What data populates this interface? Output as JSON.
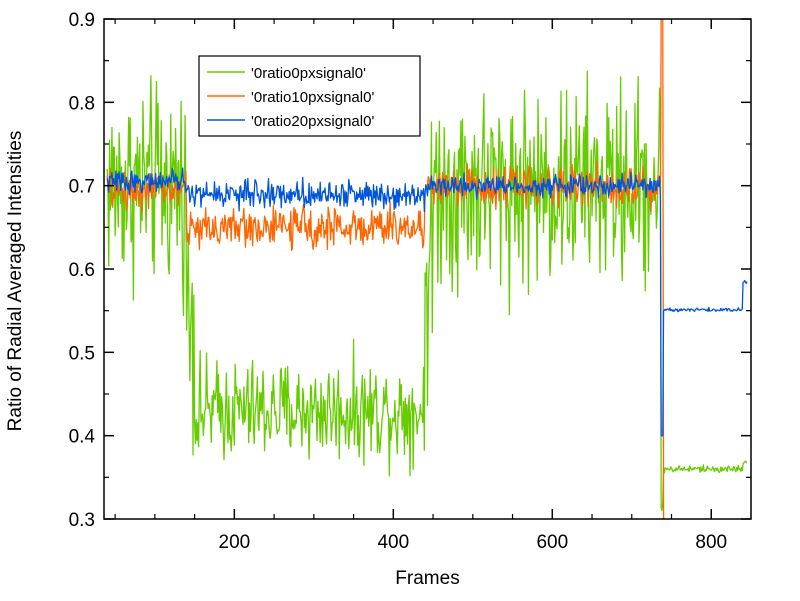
{
  "chart_data": {
    "type": "line",
    "title": "",
    "xlabel": "Frames",
    "ylabel": "Ratio of Radial Averaged Intensities",
    "xlim": [
      36,
      850
    ],
    "ylim": [
      0.3,
      0.9
    ],
    "xticks": [
      200,
      400,
      600,
      800
    ],
    "yticks": [
      0.3,
      0.4,
      0.5,
      0.6,
      0.7,
      0.8,
      0.9
    ],
    "xtick_labels": [
      "200",
      "400",
      "600",
      "800"
    ],
    "ytick_labels": [
      "0.3",
      "0.4",
      "0.5",
      "0.6",
      "0.7",
      "0.8",
      "0.9"
    ],
    "grid": false,
    "legend_position": "upper-left",
    "series": [
      {
        "name": "'0ratio0pxsignal0'",
        "color": "#66cc00",
        "segments": [
          {
            "x_start": 40,
            "x_end": 140,
            "mean": 0.7,
            "noise": 0.11
          },
          {
            "x_start": 140,
            "x_end": 150,
            "mean": 0.55,
            "noise": 0.12
          },
          {
            "x_start": 150,
            "x_end": 440,
            "mean": 0.43,
            "noise": 0.055
          },
          {
            "x_start": 440,
            "x_end": 450,
            "mean": 0.6,
            "noise": 0.15
          },
          {
            "x_start": 450,
            "x_end": 737,
            "mean": 0.7,
            "noise": 0.11
          },
          {
            "x_start": 737,
            "x_end": 740,
            "mean": 0.33,
            "noise": 0.03
          },
          {
            "x_start": 740,
            "x_end": 840,
            "mean": 0.36,
            "noise": 0.004
          },
          {
            "x_start": 840,
            "x_end": 845,
            "mean": 0.368,
            "noise": 0.002
          }
        ]
      },
      {
        "name": "'0ratio10pxsignal0'",
        "color": "#ff6600",
        "segments": [
          {
            "x_start": 40,
            "x_end": 140,
            "mean": 0.695,
            "noise": 0.022
          },
          {
            "x_start": 140,
            "x_end": 440,
            "mean": 0.65,
            "noise": 0.022
          },
          {
            "x_start": 440,
            "x_end": 737,
            "mean": 0.7,
            "noise": 0.022
          },
          {
            "x_start": 737,
            "x_end": 740,
            "mean": 0.9,
            "noise": 0.0
          },
          {
            "x_start": 740,
            "x_end": 742,
            "mean": 0.3,
            "noise": 0.0
          }
        ]
      },
      {
        "name": "'0ratio20pxsignal0'",
        "color": "#0055dd",
        "segments": [
          {
            "x_start": 40,
            "x_end": 140,
            "mean": 0.705,
            "noise": 0.012
          },
          {
            "x_start": 140,
            "x_end": 440,
            "mean": 0.69,
            "noise": 0.015
          },
          {
            "x_start": 440,
            "x_end": 737,
            "mean": 0.7,
            "noise": 0.012
          },
          {
            "x_start": 737,
            "x_end": 740,
            "mean": 0.4,
            "noise": 0.0
          },
          {
            "x_start": 740,
            "x_end": 840,
            "mean": 0.551,
            "noise": 0.002
          },
          {
            "x_start": 840,
            "x_end": 845,
            "mean": 0.585,
            "noise": 0.002
          }
        ]
      }
    ]
  }
}
